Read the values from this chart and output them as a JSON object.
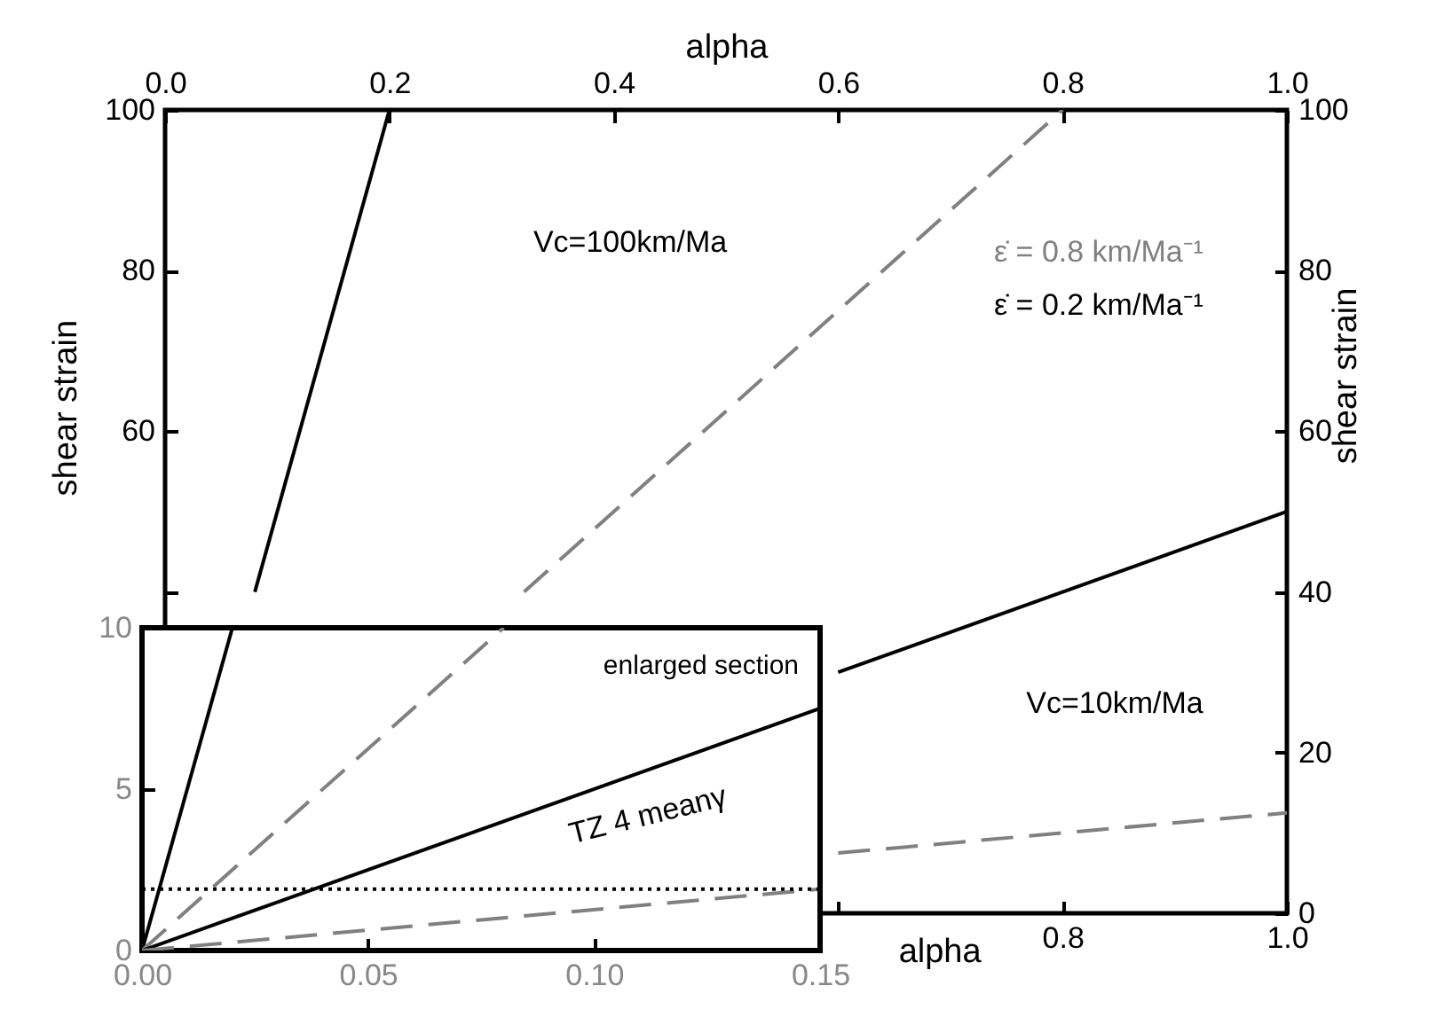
{
  "chart_data": [
    {
      "type": "line",
      "xlabel": "alpha",
      "x2label": "alpha",
      "ylabel": "shear strain",
      "y2label": "shear strain",
      "xlim": [
        0,
        1
      ],
      "xticks": [
        {
          "value": 0.6,
          "label": null
        },
        0.8,
        {
          "value": 1,
          "label": "1.0"
        }
      ],
      "x2lim": [
        0,
        1
      ],
      "x2ticks": [
        {
          "value": 0,
          "label": "0.0"
        },
        0.2,
        0.4,
        0.6,
        0.8,
        {
          "value": 1,
          "label": "1.0"
        }
      ],
      "ylim": [
        0,
        100
      ],
      "yticks": [
        {
          "value": 40,
          "label": null
        },
        60,
        80,
        100
      ],
      "y2lim": [
        0,
        100
      ],
      "y2ticks": [
        0,
        20,
        40,
        60,
        80,
        100
      ],
      "series": [
        {
          "name": "ε̇ = 0.8 km/Ma⁻¹",
          "color": "#808080",
          "line_style": "dashed",
          "x": [
            0.32,
            0.8
          ],
          "values": [
            40,
            100
          ]
        },
        {
          "name": "ε̇ = 0.2 km/Ma⁻¹",
          "color": "#000000",
          "line_style": "solid",
          "x": [
            0.08,
            0.2
          ],
          "values": [
            40,
            100
          ]
        },
        {
          "color": "#808080",
          "line_style": "dashed",
          "x": [
            0.6,
            1
          ],
          "values": [
            7.5,
            12.5
          ]
        },
        {
          "color": "#000000",
          "line_style": "solid",
          "x": [
            0.6,
            1
          ],
          "values": [
            30,
            50
          ]
        }
      ],
      "annotations": [
        "Vc=100km/Ma",
        "Vc=10km/Ma"
      ],
      "legend": "top right",
      "grid": false,
      "marker": "none"
    },
    {
      "type": "line",
      "xlim": [
        0,
        0.15
      ],
      "xticks": [
        {
          "value": 0,
          "label": "0.00"
        },
        0.05,
        {
          "value": 0.1,
          "label": "0.10"
        },
        0.15
      ],
      "ylim": [
        0,
        10
      ],
      "yticks": [
        0,
        5,
        10
      ],
      "series": [
        {
          "color": "#000000",
          "line_style": "solid",
          "x": [
            0,
            0.02
          ],
          "values": [
            0,
            10
          ]
        },
        {
          "color": "#808080",
          "line_style": "dashed",
          "x": [
            0,
            0.08
          ],
          "values": [
            0,
            10
          ]
        },
        {
          "color": "#000000",
          "line_style": "solid",
          "x": [
            0,
            0.15
          ],
          "values": [
            0,
            7.5
          ]
        },
        {
          "color": "#808080",
          "line_style": "dashed",
          "x": [
            0,
            0.15
          ],
          "values": [
            0,
            1.9
          ]
        }
      ],
      "ref_lines": [
        {
          "axis": "y",
          "value": 1.9,
          "line_style": "dotted",
          "color": "#000000"
        }
      ],
      "annotations": [
        "enlarged section",
        "TZ 4 meanγ"
      ],
      "grid": false,
      "marker": "none"
    }
  ]
}
